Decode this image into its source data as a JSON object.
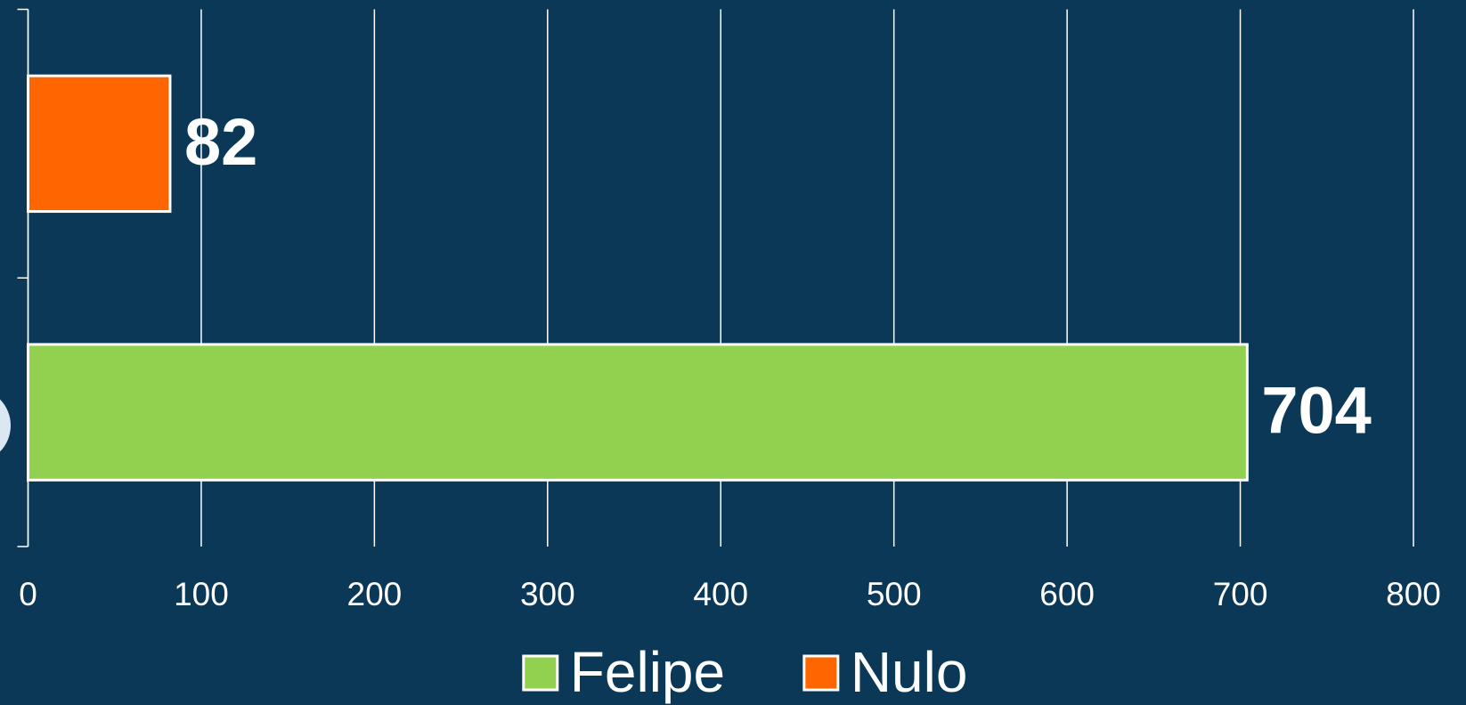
{
  "chart_data": {
    "type": "hbar",
    "categories": [
      null,
      null
    ],
    "series": [
      {
        "name": "Felipe",
        "color": "#92d050",
        "values": [
          704,
          null
        ]
      },
      {
        "name": "Nulo",
        "color": "#ff6600",
        "values": [
          null,
          82
        ]
      }
    ],
    "xlim": [
      0,
      800
    ],
    "xticks": [
      0,
      100,
      200,
      300,
      400,
      500,
      600,
      700,
      800
    ],
    "grid": true,
    "legend": "bottom"
  }
}
